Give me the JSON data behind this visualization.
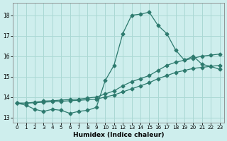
{
  "xlabel": "Humidex (Indice chaleur)",
  "bg_color": "#ceeeed",
  "line_color": "#2d7a6e",
  "grid_color": "#aad8d4",
  "xlim": [
    -0.5,
    23.5
  ],
  "ylim": [
    12.75,
    18.6
  ],
  "xticks": [
    0,
    1,
    2,
    3,
    4,
    5,
    6,
    7,
    8,
    9,
    10,
    11,
    12,
    13,
    14,
    15,
    16,
    17,
    18,
    19,
    20,
    21,
    22,
    23
  ],
  "yticks": [
    13,
    14,
    15,
    16,
    17,
    18
  ],
  "curve1_x": [
    0,
    1,
    2,
    3,
    4,
    5,
    6,
    7,
    8,
    9,
    10,
    11,
    12,
    13,
    14,
    15,
    16,
    17,
    18,
    19,
    20,
    21,
    22,
    23
  ],
  "curve1_y": [
    13.7,
    13.6,
    13.4,
    13.3,
    13.4,
    13.35,
    13.2,
    13.3,
    13.35,
    13.5,
    14.8,
    15.55,
    17.1,
    18.0,
    18.05,
    18.15,
    17.5,
    17.1,
    16.3,
    15.8,
    16.0,
    15.6,
    15.5,
    15.35
  ],
  "curve2_x": [
    0,
    1,
    2,
    3,
    4,
    5,
    6,
    7,
    8,
    9,
    10,
    11,
    12,
    13,
    14,
    15,
    16,
    17,
    18,
    19,
    20,
    21,
    22,
    23
  ],
  "curve2_y": [
    13.7,
    13.7,
    13.75,
    13.8,
    13.82,
    13.85,
    13.88,
    13.9,
    13.95,
    14.0,
    14.15,
    14.3,
    14.55,
    14.75,
    14.9,
    15.05,
    15.3,
    15.55,
    15.7,
    15.8,
    15.9,
    16.0,
    16.05,
    16.1
  ],
  "curve3_x": [
    0,
    1,
    2,
    3,
    4,
    5,
    6,
    7,
    8,
    9,
    10,
    11,
    12,
    13,
    14,
    15,
    16,
    17,
    18,
    19,
    20,
    21,
    22,
    23
  ],
  "curve3_y": [
    13.7,
    13.7,
    13.72,
    13.75,
    13.77,
    13.79,
    13.82,
    13.84,
    13.87,
    13.9,
    14.0,
    14.1,
    14.25,
    14.4,
    14.55,
    14.7,
    14.9,
    15.05,
    15.2,
    15.3,
    15.4,
    15.45,
    15.5,
    15.55
  ]
}
